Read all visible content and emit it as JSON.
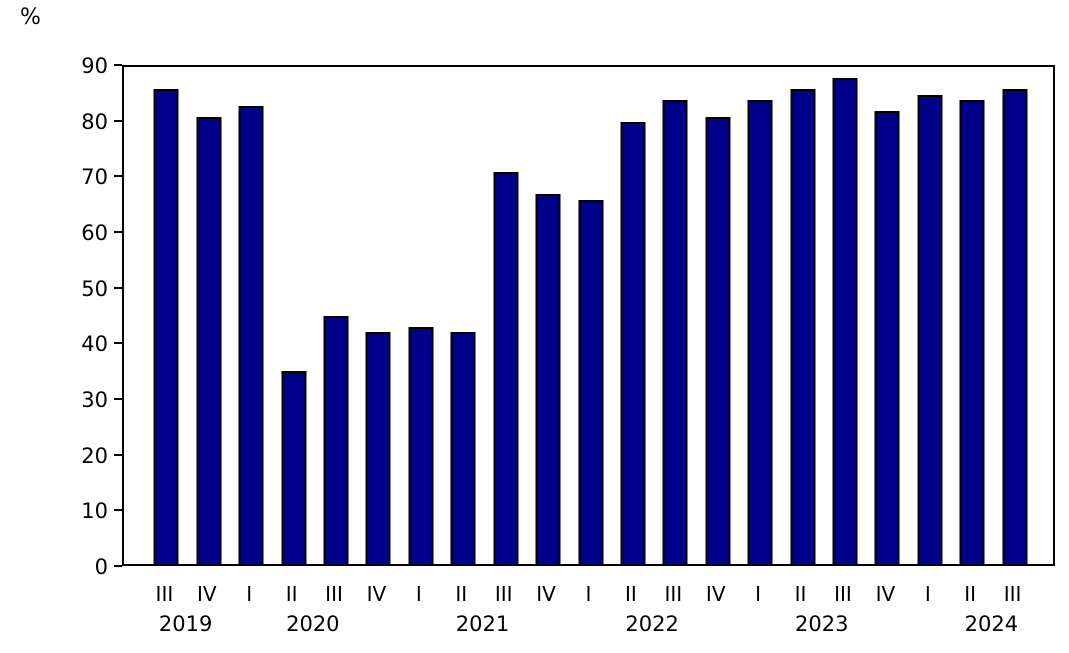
{
  "chart_data": {
    "type": "bar",
    "title": "",
    "xlabel": "",
    "ylabel": "%",
    "ylim": [
      0,
      90
    ],
    "yticks": [
      0,
      10,
      20,
      30,
      40,
      50,
      60,
      70,
      80,
      90
    ],
    "grid": false,
    "legend": false,
    "bar_color": "#00008b",
    "bar_border_color": "#000000",
    "categories": [
      "2019 III",
      "2019 IV",
      "2020 I",
      "2020 II",
      "2020 III",
      "2020 IV",
      "2021 I",
      "2021 II",
      "2021 III",
      "2021 IV",
      "2022 I",
      "2022 II",
      "2022 III",
      "2022 IV",
      "2023 I",
      "2023 II",
      "2023 III",
      "2023 IV",
      "2024 I",
      "2024 II",
      "2024 III"
    ],
    "quarter_tick_labels": [
      "III",
      "IV",
      "I",
      "II",
      "III",
      "IV",
      "I",
      "II",
      "III",
      "IV",
      "I",
      "II",
      "III",
      "IV",
      "I",
      "II",
      "III",
      "IV",
      "I",
      "II",
      "III"
    ],
    "values": [
      86,
      81,
      83,
      35,
      45,
      42,
      43,
      42,
      71,
      67,
      66,
      80,
      84,
      81,
      84,
      86,
      88,
      82,
      85,
      84,
      86
    ],
    "year_groups": [
      {
        "label": "2019",
        "slots": [
          0,
          1
        ]
      },
      {
        "label": "2020",
        "slots": [
          2,
          3,
          4,
          5
        ]
      },
      {
        "label": "2021",
        "slots": [
          6,
          7,
          8,
          9
        ]
      },
      {
        "label": "2022",
        "slots": [
          10,
          11,
          12,
          13
        ]
      },
      {
        "label": "2023",
        "slots": [
          14,
          15,
          16,
          17
        ]
      },
      {
        "label": "2024",
        "slots": [
          18,
          19,
          20
        ]
      }
    ]
  }
}
